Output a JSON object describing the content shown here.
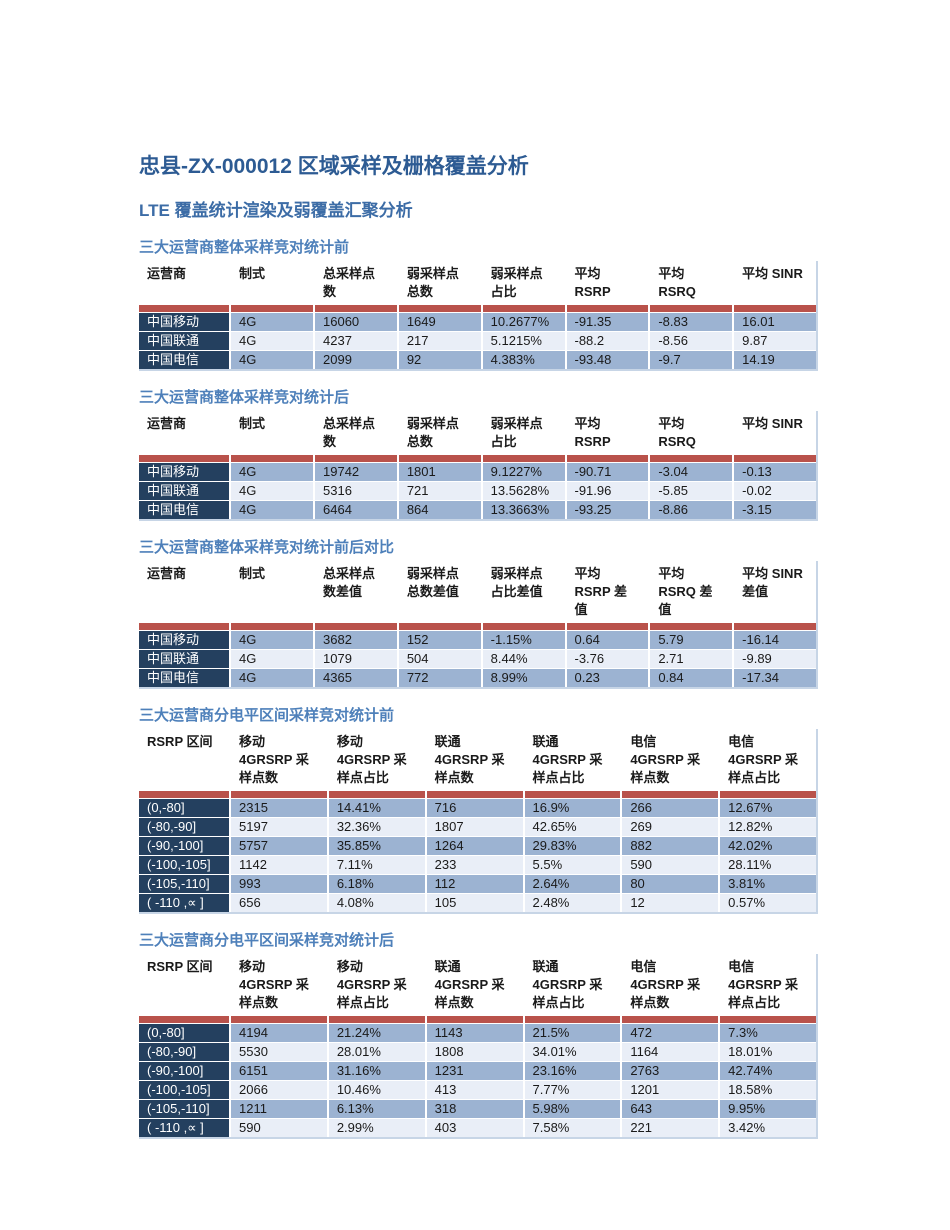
{
  "page": {
    "title": "忠县-ZX-000012 区域采样及栅格覆盖分析",
    "subtitle": "LTE 覆盖统计渲染及弱覆盖汇聚分析"
  },
  "colors": {
    "title_blue": "#2D5B93",
    "subtitle_blue": "#3C6CA6",
    "section_heading_blue": "#4E80BA",
    "separator_red": "#B9524B",
    "row_label_navy": "#24405F",
    "row_fill_medium": "#9CB3D2",
    "row_fill_light": "#E9EEF7",
    "table_edge": "#C7D5E6"
  },
  "tables": [
    {
      "heading": "三大运营商整体采样竞对统计前",
      "columns": [
        "运营商",
        "制式",
        "总采样点\n数",
        "弱采样点\n总数",
        "弱采样点\n占比",
        "平均\nRSRP",
        "平均\nRSRQ",
        "平均 SINR"
      ],
      "rows": [
        [
          "中国移动",
          "4G",
          "16060",
          "1649",
          "10.2677%",
          "-91.35",
          "-8.83",
          "16.01"
        ],
        [
          "中国联通",
          "4G",
          "4237",
          "217",
          "5.1215%",
          "-88.2",
          "-8.56",
          "9.87"
        ],
        [
          "中国电信",
          "4G",
          "2099",
          "92",
          "4.383%",
          "-93.48",
          "-9.7",
          "14.19"
        ]
      ]
    },
    {
      "heading": "三大运营商整体采样竞对统计后",
      "columns": [
        "运营商",
        "制式",
        "总采样点\n数",
        "弱采样点\n总数",
        "弱采样点\n占比",
        "平均\nRSRP",
        "平均\nRSRQ",
        "平均 SINR"
      ],
      "rows": [
        [
          "中国移动",
          "4G",
          "19742",
          "1801",
          "9.1227%",
          "-90.71",
          "-3.04",
          "-0.13"
        ],
        [
          "中国联通",
          "4G",
          "5316",
          "721",
          "13.5628%",
          "-91.96",
          "-5.85",
          "-0.02"
        ],
        [
          "中国电信",
          "4G",
          "6464",
          "864",
          "13.3663%",
          "-93.25",
          "-8.86",
          "-3.15"
        ]
      ]
    },
    {
      "heading": "三大运营商整体采样竞对统计前后对比",
      "columns": [
        "运营商",
        "制式",
        "总采样点\n数差值",
        "弱采样点\n总数差值",
        "弱采样点\n占比差值",
        "平均\nRSRP 差\n值",
        "平均\nRSRQ 差\n值",
        "平均 SINR\n差值"
      ],
      "rows": [
        [
          "中国移动",
          "4G",
          "3682",
          "152",
          "-1.15%",
          "0.64",
          "5.79",
          "-16.14"
        ],
        [
          "中国联通",
          "4G",
          "1079",
          "504",
          "8.44%",
          "-3.76",
          "2.71",
          "-9.89"
        ],
        [
          "中国电信",
          "4G",
          "4365",
          "772",
          "8.99%",
          "0.23",
          "0.84",
          "-17.34"
        ]
      ]
    },
    {
      "heading": "三大运营商分电平区间采样竞对统计前",
      "columns": [
        "RSRP 区间",
        "移动\n4GRSRP 采\n样点数",
        "移动\n4GRSRP 采\n样点占比",
        "联通\n4GRSRP 采\n样点数",
        "联通\n4GRSRP 采\n样点占比",
        "电信\n4GRSRP 采\n样点数",
        "电信\n4GRSRP 采\n样点占比"
      ],
      "rows": [
        [
          "(0,-80]",
          "2315",
          "14.41%",
          "716",
          "16.9%",
          "266",
          "12.67%"
        ],
        [
          "(-80,-90]",
          "5197",
          "32.36%",
          "1807",
          "42.65%",
          "269",
          "12.82%"
        ],
        [
          "(-90,-100]",
          "5757",
          "35.85%",
          "1264",
          "29.83%",
          "882",
          "42.02%"
        ],
        [
          "(-100,-105]",
          "1142",
          "7.11%",
          "233",
          "5.5%",
          "590",
          "28.11%"
        ],
        [
          "(-105,-110]",
          "993",
          "6.18%",
          "112",
          "2.64%",
          "80",
          "3.81%"
        ],
        [
          "( -110 ,∝ ]",
          "656",
          "4.08%",
          "105",
          "2.48%",
          "12",
          "0.57%"
        ]
      ]
    },
    {
      "heading": "三大运营商分电平区间采样竞对统计后",
      "columns": [
        "RSRP 区间",
        "移动\n4GRSRP 采\n样点数",
        "移动\n4GRSRP 采\n样点占比",
        "联通\n4GRSRP 采\n样点数",
        "联通\n4GRSRP 采\n样点占比",
        "电信\n4GRSRP 采\n样点数",
        "电信\n4GRSRP 采\n样点占比"
      ],
      "rows": [
        [
          "(0,-80]",
          "4194",
          "21.24%",
          "1143",
          "21.5%",
          "472",
          "7.3%"
        ],
        [
          "(-80,-90]",
          "5530",
          "28.01%",
          "1808",
          "34.01%",
          "1164",
          "18.01%"
        ],
        [
          "(-90,-100]",
          "6151",
          "31.16%",
          "1231",
          "23.16%",
          "2763",
          "42.74%"
        ],
        [
          "(-100,-105]",
          "2066",
          "10.46%",
          "413",
          "7.77%",
          "1201",
          "18.58%"
        ],
        [
          "(-105,-110]",
          "1211",
          "6.13%",
          "318",
          "5.98%",
          "643",
          "9.95%"
        ],
        [
          "( -110 ,∝ ]",
          "590",
          "2.99%",
          "403",
          "7.58%",
          "221",
          "3.42%"
        ]
      ]
    }
  ]
}
